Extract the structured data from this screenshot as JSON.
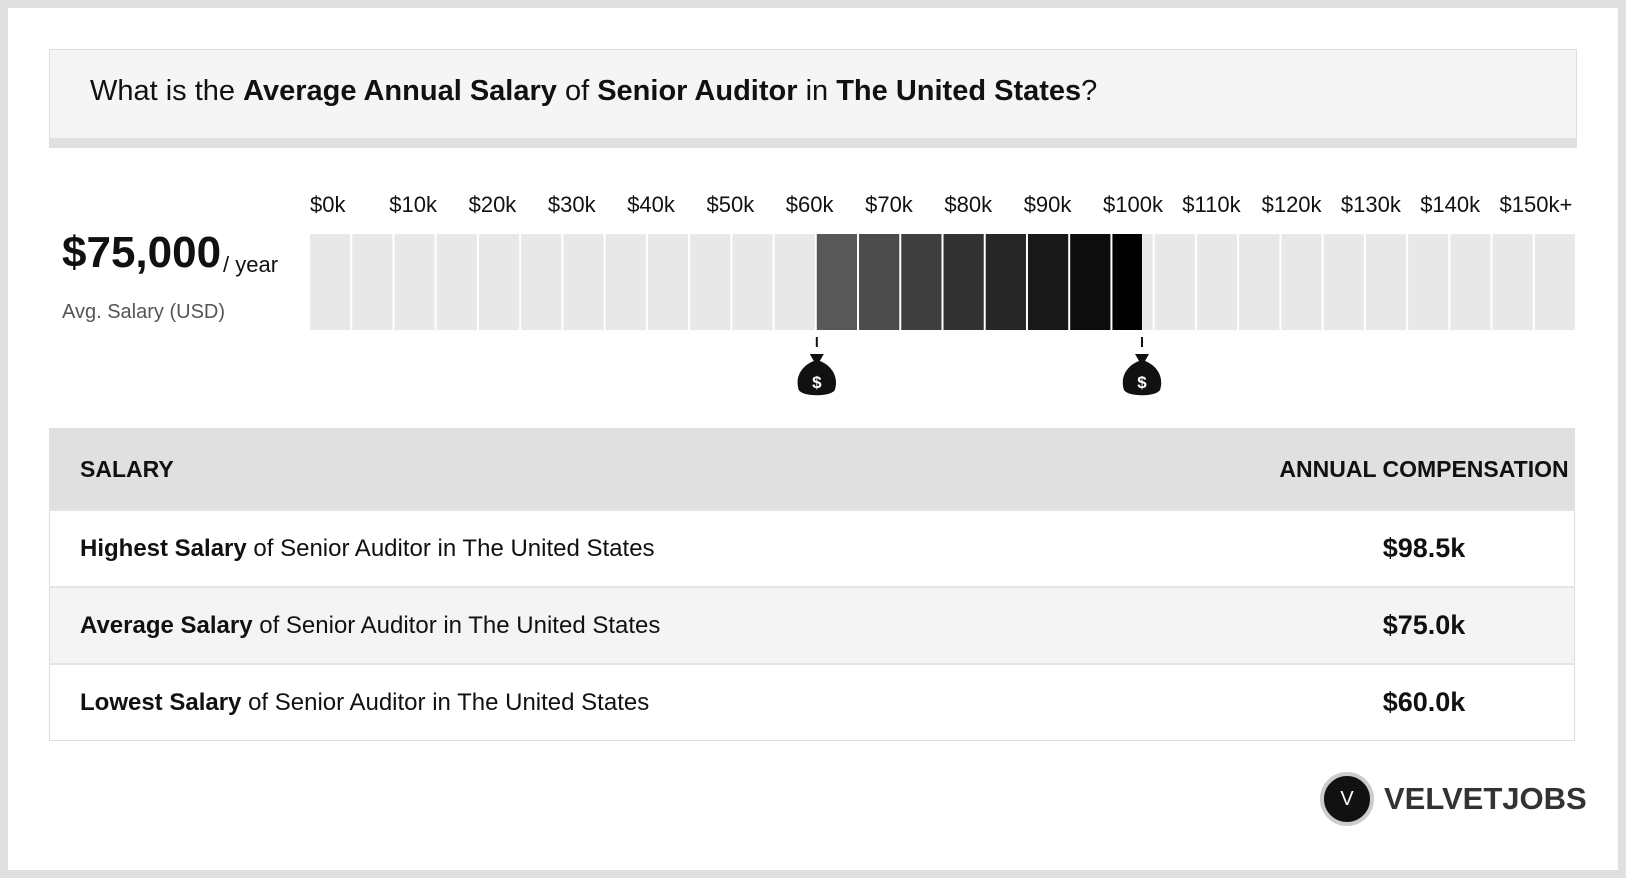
{
  "header": {
    "title_parts": [
      "What is the",
      "Average Annual Salary",
      "of",
      "Senior Auditor",
      "in",
      "The United States",
      "?"
    ]
  },
  "summary": {
    "amount": "$75,000",
    "period": "/ year",
    "caption": "Avg. Salary (USD)"
  },
  "salary_scale": {
    "ticks": [
      {
        "value": 0,
        "label": "$0k"
      },
      {
        "value": 10,
        "label": "$10k"
      },
      {
        "value": 20,
        "label": "$20k"
      },
      {
        "value": 30,
        "label": "$30k"
      },
      {
        "value": 40,
        "label": "$40k"
      },
      {
        "value": 50,
        "label": "$50k"
      },
      {
        "value": 60,
        "label": "$60k"
      },
      {
        "value": 70,
        "label": "$70k"
      },
      {
        "value": 80,
        "label": "$80k"
      },
      {
        "value": 90,
        "label": "$90k"
      },
      {
        "value": 100,
        "label": "$100k"
      },
      {
        "value": 110,
        "label": "$110k"
      },
      {
        "value": 120,
        "label": "$120k"
      },
      {
        "value": 130,
        "label": "$130k"
      },
      {
        "value": 140,
        "label": "$140k"
      },
      {
        "value": 150,
        "label": "$150k+"
      }
    ],
    "low": 60.0,
    "high": 98.5,
    "marker_symbol": "$"
  },
  "table": {
    "headers": [
      "SALARY",
      "ANNUAL COMPENSATION"
    ],
    "rows": [
      {
        "label_bold": "Highest Salary",
        "label_rest": "of Senior Auditor in The United States",
        "value": "$98.5k"
      },
      {
        "label_bold": "Average Salary",
        "label_rest": "of Senior Auditor in The United States",
        "value": "$75.0k"
      },
      {
        "label_bold": "Lowest Salary",
        "label_rest": "of Senior Auditor in The United States",
        "value": "$60.0k"
      }
    ]
  },
  "logo": {
    "letter": "V",
    "name": "VELVETJOBS"
  }
}
